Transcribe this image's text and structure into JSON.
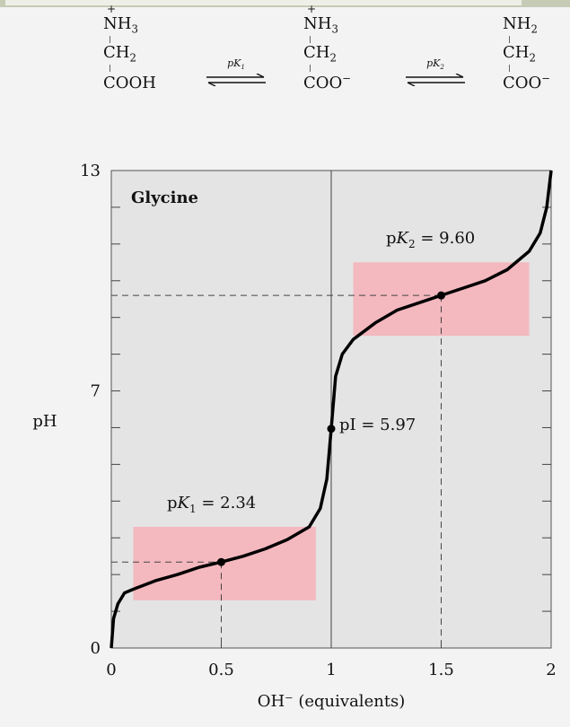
{
  "species": [
    {
      "charge": "+",
      "group1": "NH",
      "group1_sub": "3",
      "group2": "CH",
      "group2_sub": "2",
      "group3": "COOH",
      "group3_sup": ""
    },
    {
      "charge": "+",
      "group1": "NH",
      "group1_sub": "3",
      "group2": "CH",
      "group2_sub": "2",
      "group3": "COO",
      "group3_sup": "−"
    },
    {
      "charge": "",
      "group1": "NH",
      "group1_sub": "2",
      "group2": "CH",
      "group2_sub": "2",
      "group3": "COO",
      "group3_sup": "−"
    }
  ],
  "equilibria": [
    {
      "label_p": "p",
      "label_k": "K",
      "label_sub": "1"
    },
    {
      "label_p": "p",
      "label_k": "K",
      "label_sub": "2"
    }
  ],
  "chart_data": {
    "type": "line",
    "title": "Glycine",
    "xlabel": "OH⁻ (equivalents)",
    "ylabel": "pH",
    "xlim": [
      0,
      2
    ],
    "ylim": [
      0,
      13
    ],
    "xticks": [
      "0",
      "0.5",
      "1",
      "1.5",
      "2"
    ],
    "yticks": [
      "0",
      "7",
      "13"
    ],
    "grid": false,
    "series": [
      {
        "x": [
          0.0,
          0.01,
          0.03,
          0.06,
          0.1,
          0.2,
          0.3,
          0.4,
          0.5,
          0.6,
          0.7,
          0.8,
          0.9,
          0.95,
          0.98,
          1.0,
          1.02,
          1.05,
          1.1,
          1.2,
          1.3,
          1.4,
          1.5,
          1.6,
          1.7,
          1.8,
          1.9,
          1.95,
          1.98,
          2.0
        ],
        "y": [
          0.0,
          0.8,
          1.2,
          1.5,
          1.6,
          1.83,
          2.0,
          2.2,
          2.34,
          2.5,
          2.7,
          2.95,
          3.3,
          3.8,
          4.6,
          5.97,
          7.4,
          8.0,
          8.4,
          8.85,
          9.2,
          9.4,
          9.6,
          9.8,
          10.0,
          10.3,
          10.8,
          11.3,
          12.0,
          13.0
        ]
      }
    ],
    "buffer_regions": [
      {
        "x": [
          0.1,
          0.93
        ],
        "y": [
          1.3,
          3.3
        ]
      },
      {
        "x": [
          1.1,
          1.9
        ],
        "y": [
          8.5,
          10.5
        ]
      }
    ],
    "points": [
      {
        "x": 0.5,
        "y": 2.34
      },
      {
        "x": 1.0,
        "y": 5.97
      },
      {
        "x": 1.5,
        "y": 9.6
      }
    ],
    "annotations": {
      "pk1": {
        "prefix": "p",
        "k": "K",
        "sub": "1",
        "value": " = 2.34"
      },
      "pk2": {
        "prefix": "p",
        "k": "K",
        "sub": "2",
        "value": " = 9.60"
      },
      "pi": {
        "text": "pI = 5.97"
      }
    },
    "colors": {
      "background": "#e4e4e4",
      "buffer": "#f4b8bf",
      "curve": "#000000"
    }
  }
}
